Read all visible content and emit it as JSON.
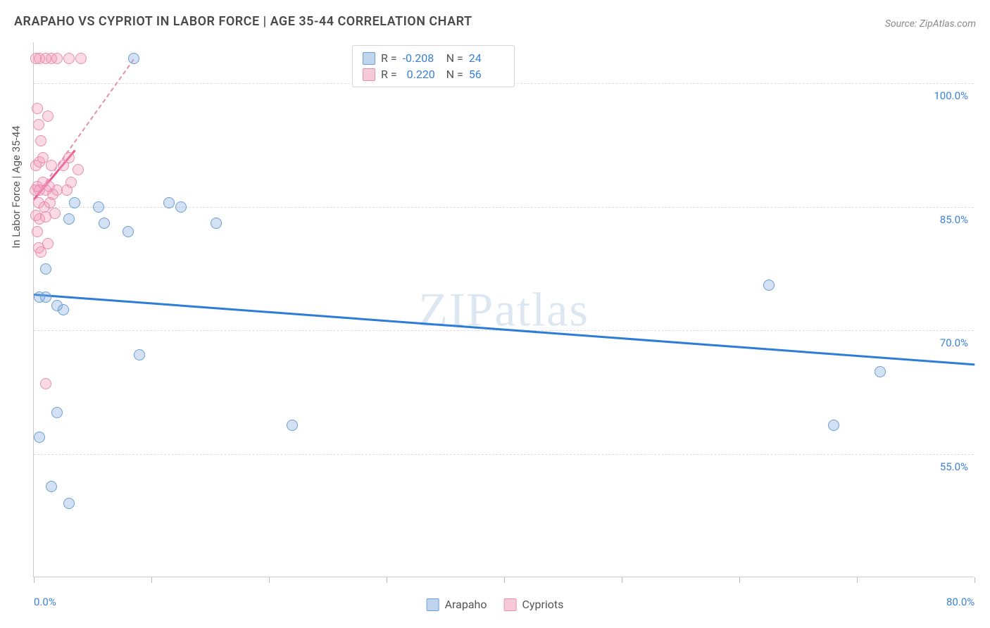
{
  "title": "ARAPAHO VS CYPRIOT IN LABOR FORCE | AGE 35-44 CORRELATION CHART",
  "source": "Source: ZipAtlas.com",
  "watermark": "ZIPatlas",
  "ylabel": "In Labor Force | Age 35-44",
  "chart": {
    "type": "scatter",
    "xlim": [
      0,
      80
    ],
    "ylim": [
      40,
      105
    ],
    "x_ticks": [
      0,
      10,
      20,
      30,
      40,
      50,
      60,
      70,
      80
    ],
    "x_tick_labels": {
      "0": "0.0%",
      "80": "80.0%"
    },
    "y_grid": [
      55,
      70,
      85,
      100
    ],
    "y_tick_labels": {
      "55": "55.0%",
      "70": "70.0%",
      "85": "85.0%",
      "100": "100.0%"
    },
    "gridline_color": "#dddddd",
    "axis_color": "#cccccc",
    "tick_label_color": "#3b82d6",
    "background_color": "#ffffff",
    "point_radius": 8,
    "series": [
      {
        "name": "Arapaho",
        "color_fill": "rgba(130,170,220,0.35)",
        "color_stroke": "#6a9fd4",
        "R": "-0.208",
        "N": "24",
        "regression": {
          "x1": 0,
          "y1": 74.5,
          "x2": 80,
          "y2": 66.0,
          "color": "#2d7cd6",
          "dash": false
        },
        "points": [
          [
            8.5,
            103
          ],
          [
            3.5,
            85.5
          ],
          [
            5.5,
            85
          ],
          [
            11.5,
            85.5
          ],
          [
            12.5,
            85
          ],
          [
            3,
            83.5
          ],
          [
            6,
            83
          ],
          [
            8,
            82
          ],
          [
            15.5,
            83
          ],
          [
            1,
            77.5
          ],
          [
            2,
            73
          ],
          [
            2.5,
            72.5
          ],
          [
            0.5,
            74
          ],
          [
            72,
            65
          ],
          [
            68,
            58.5
          ],
          [
            9,
            67
          ],
          [
            2,
            60
          ],
          [
            0.5,
            57
          ],
          [
            22,
            58.5
          ],
          [
            62.5,
            75.5
          ],
          [
            1.5,
            51
          ],
          [
            3,
            49
          ],
          [
            1,
            74
          ]
        ]
      },
      {
        "name": "Cypriots",
        "color_fill": "rgba(240,150,180,0.35)",
        "color_stroke": "#e88fb0",
        "R": "0.220",
        "N": "56",
        "regression": {
          "x1": 0,
          "y1": 86,
          "x2": 8.5,
          "y2": 103,
          "color": "#e95a8e",
          "dash": true
        },
        "regression_solid": {
          "x1": 0,
          "y1": 86,
          "x2": 3.5,
          "y2": 92
        },
        "points": [
          [
            0.2,
            103
          ],
          [
            0.5,
            103
          ],
          [
            1,
            103
          ],
          [
            1.5,
            103
          ],
          [
            2,
            103
          ],
          [
            3,
            103
          ],
          [
            4,
            103
          ],
          [
            0.3,
            97
          ],
          [
            0.4,
            95
          ],
          [
            1.2,
            96
          ],
          [
            0.6,
            93
          ],
          [
            0.2,
            90
          ],
          [
            0.5,
            90.5
          ],
          [
            0.8,
            91
          ],
          [
            1.5,
            90
          ],
          [
            2.5,
            90
          ],
          [
            3,
            91
          ],
          [
            3.8,
            89.5
          ],
          [
            0.1,
            87
          ],
          [
            0.3,
            87.5
          ],
          [
            0.5,
            87
          ],
          [
            0.8,
            88
          ],
          [
            1,
            87
          ],
          [
            1.3,
            87.5
          ],
          [
            1.6,
            86.5
          ],
          [
            2,
            87
          ],
          [
            2.8,
            87
          ],
          [
            3.2,
            88
          ],
          [
            0.4,
            85.5
          ],
          [
            0.9,
            85
          ],
          [
            1.4,
            85.5
          ],
          [
            0.2,
            84
          ],
          [
            0.5,
            83.5
          ],
          [
            1,
            83.8
          ],
          [
            1.8,
            84.2
          ],
          [
            0.3,
            82
          ],
          [
            0.4,
            80
          ],
          [
            0.6,
            79.5
          ],
          [
            1.2,
            80.5
          ],
          [
            1,
            63.5
          ]
        ]
      }
    ]
  },
  "legend_bottom": [
    "Arapaho",
    "Cypriots"
  ]
}
